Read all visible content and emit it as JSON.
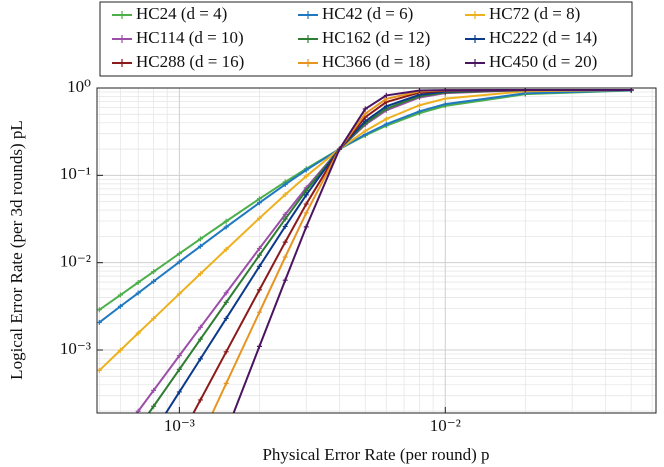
{
  "chart_data": {
    "type": "line",
    "x_label": "Physical Error Rate (per round) p",
    "y_label": "Logical Error Rate (per 3d rounds) pL",
    "x_scale": "log",
    "y_scale": "log",
    "grid": true,
    "minor_grid": true,
    "legend": "top",
    "xlim": [
      0.00049,
      0.062
    ],
    "ylim": [
      0.00019,
      1
    ],
    "xticks": [
      {
        "value": 0.001,
        "label": "10⁻³"
      },
      {
        "value": 0.01,
        "label": "10⁻²"
      }
    ],
    "yticks": [
      {
        "value": 0.001,
        "label": "10⁻³"
      },
      {
        "value": 0.01,
        "label": "10⁻²"
      },
      {
        "value": 0.1,
        "label": "10⁻¹"
      },
      {
        "value": 1,
        "label": "10⁰"
      }
    ],
    "x": [
      0.0005,
      0.0006,
      0.0007,
      0.0008,
      0.001,
      0.0012,
      0.0015,
      0.002,
      0.0025,
      0.003,
      0.004,
      0.005,
      0.006,
      0.008,
      0.01,
      0.02,
      0.05
    ],
    "series": [
      {
        "name": "HC24 (d = 4)",
        "color": "#4daf4a",
        "values": [
          0.00289,
          0.00426,
          0.00593,
          0.00789,
          0.0127,
          0.0187,
          0.0298,
          0.0539,
          0.0841,
          0.119,
          0.2,
          0.286,
          0.37,
          0.515,
          0.624,
          0.85,
          0.935
        ]
      },
      {
        "name": "HC42 (d = 6)",
        "color": "#1f78c0",
        "values": [
          0.00207,
          0.00316,
          0.00449,
          0.00611,
          0.0102,
          0.0154,
          0.0256,
          0.0485,
          0.0786,
          0.115,
          0.2,
          0.293,
          0.385,
          0.541,
          0.654,
          0.871,
          0.94
        ]
      },
      {
        "name": "HC72 (d = 8)",
        "color": "#edb120",
        "values": [
          0.000584,
          0.000994,
          0.00156,
          0.0023,
          0.0044,
          0.00747,
          0.0142,
          0.0323,
          0.0602,
          0.098,
          0.2,
          0.322,
          0.442,
          0.635,
          0.755,
          0.919,
          0.948
        ]
      },
      {
        "name": "HC114 (d = 10)",
        "color": "#9b4fa8",
        "values": [
          null,
          0.000106,
          0.000199,
          0.000345,
          0.000862,
          0.00182,
          0.00451,
          0.01456,
          0.0356,
          0.0718,
          0.2,
          0.38,
          0.555,
          0.779,
          0.874,
          0.945,
          0.95
        ]
      },
      {
        "name": "HC162 (d = 12)",
        "color": "#2e7d32",
        "values": [
          null,
          null,
          0.000127,
          0.000227,
          0.0006,
          0.00133,
          0.00351,
          0.0122,
          0.0316,
          0.0671,
          0.2,
          0.393,
          0.579,
          0.803,
          0.889,
          0.947,
          0.95
        ]
      },
      {
        "name": "HC222 (d = 14)",
        "color": "#0b3a8a",
        "values": [
          null,
          null,
          null,
          0.000114,
          0.000331,
          0.000792,
          0.0023,
          0.00907,
          0.026,
          0.0597,
          0.2,
          0.416,
          0.618,
          0.837,
          0.908,
          0.948,
          0.95
        ]
      },
      {
        "name": "HC288 (d = 16)",
        "color": "#8b1a1a",
        "values": [
          null,
          null,
          null,
          null,
          9.5e-05,
          0.000268,
          0.000954,
          0.00488,
          0.0172,
          0.0469,
          0.2,
          0.463,
          0.691,
          0.886,
          0.931,
          0.95,
          0.95
        ]
      },
      {
        "name": "HC366 (d = 18)",
        "color": "#e69520",
        "values": [
          null,
          null,
          null,
          null,
          null,
          9.6e-05,
          0.000415,
          0.00271,
          0.0116,
          0.0371,
          0.2,
          0.508,
          0.751,
          0.913,
          0.941,
          0.95,
          0.95
        ]
      },
      {
        "name": "HC450 (d = 20)",
        "color": "#4b1460",
        "values": [
          null,
          null,
          null,
          null,
          null,
          null,
          0.000115,
          0.0011,
          0.0063,
          0.0257,
          0.2,
          0.576,
          0.822,
          0.935,
          0.945,
          0.95,
          0.95
        ]
      }
    ]
  }
}
